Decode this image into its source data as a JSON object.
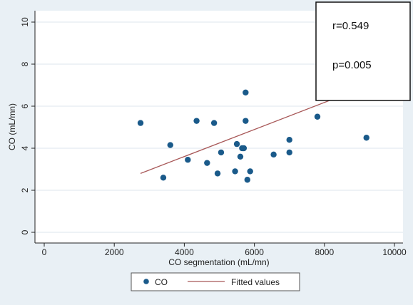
{
  "chart_data": {
    "type": "scatter",
    "title": "",
    "xlabel": "CO segmentation (mL/mn)",
    "ylabel": "CO (mL/mn)",
    "xlim": [
      0,
      10000
    ],
    "ylim": [
      0,
      10
    ],
    "xticks": [
      "0",
      "2000",
      "4000",
      "6000",
      "8000",
      "10000"
    ],
    "yticks": [
      "0",
      "2",
      "4",
      "6",
      "8",
      "10"
    ],
    "grid": true,
    "legend_position": "bottom",
    "series": [
      {
        "name": "CO",
        "kind": "scatter",
        "color": "#1a5a8a",
        "points": [
          {
            "x": 2750,
            "y": 5.2
          },
          {
            "x": 3400,
            "y": 2.6
          },
          {
            "x": 3600,
            "y": 4.15
          },
          {
            "x": 4100,
            "y": 3.45
          },
          {
            "x": 4350,
            "y": 5.3
          },
          {
            "x": 4650,
            "y": 3.3
          },
          {
            "x": 4850,
            "y": 5.2
          },
          {
            "x": 4950,
            "y": 2.8
          },
          {
            "x": 5050,
            "y": 3.8
          },
          {
            "x": 5450,
            "y": 2.9
          },
          {
            "x": 5500,
            "y": 4.2
          },
          {
            "x": 5600,
            "y": 3.6
          },
          {
            "x": 5650,
            "y": 4.0
          },
          {
            "x": 5700,
            "y": 4.0
          },
          {
            "x": 5750,
            "y": 6.65
          },
          {
            "x": 5750,
            "y": 5.3
          },
          {
            "x": 5800,
            "y": 2.5
          },
          {
            "x": 5880,
            "y": 2.9
          },
          {
            "x": 6550,
            "y": 3.7
          },
          {
            "x": 7000,
            "y": 4.4
          },
          {
            "x": 7000,
            "y": 3.8
          },
          {
            "x": 7800,
            "y": 5.5
          },
          {
            "x": 9200,
            "y": 4.5
          }
        ]
      },
      {
        "name": "Fitted values",
        "kind": "line",
        "color": "#a85858",
        "points": [
          {
            "x": 2750,
            "y": 2.8
          },
          {
            "x": 9200,
            "y": 6.95
          }
        ]
      }
    ],
    "annotations": {
      "r": "r=0.549",
      "p": "p=0.005"
    }
  }
}
